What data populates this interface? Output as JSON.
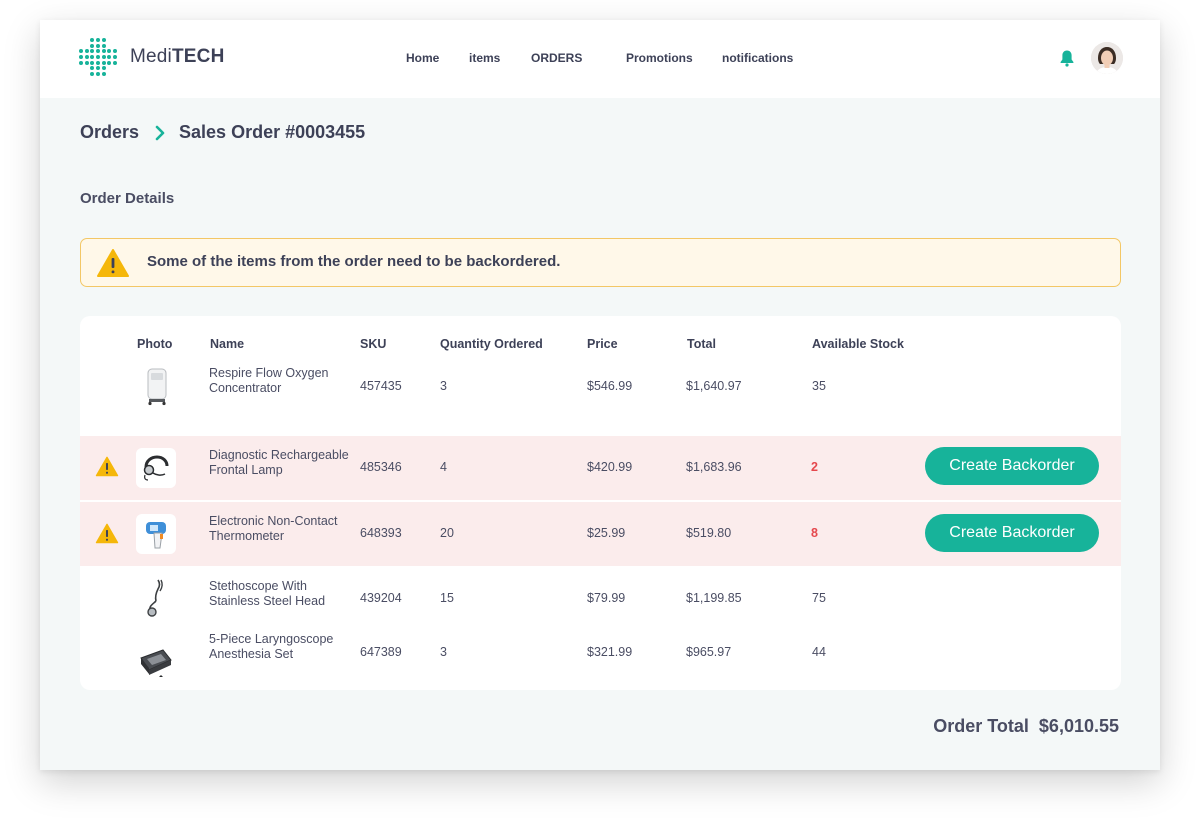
{
  "app": {
    "logo_prefix": "Medi",
    "logo_suffix": "TECH",
    "accent": "#17b39a",
    "warning": "#f5b70a",
    "danger": "#e5484d"
  },
  "nav": [
    {
      "label": "Home"
    },
    {
      "label": "items"
    },
    {
      "label": "ORDERS"
    },
    {
      "label": "Promotions"
    },
    {
      "label": "notifications"
    }
  ],
  "header_icons": {
    "bell": "bell-icon",
    "avatar": "user-avatar"
  },
  "breadcrumb": {
    "parent": "Orders",
    "current": "Sales Order #0003455"
  },
  "section_title": "Order Details",
  "alert": {
    "icon": "warning-icon",
    "message": "Some of the items from the order need to be backordered."
  },
  "table": {
    "headers": [
      "Photo",
      "Name",
      "SKU",
      "Quantity Ordered",
      "Price",
      "Total",
      "Available Stock"
    ],
    "rows": [
      {
        "photo": "oxygen-concentrator-photo",
        "name": "Respire Flow Oxygen Concentrator",
        "sku": "457435",
        "qty": "3",
        "price": "$546.99",
        "total": "$1,640.97",
        "stock": "35",
        "backorder": false
      },
      {
        "photo": "frontal-lamp-photo",
        "name": "Diagnostic Rechargeable Frontal Lamp",
        "sku": "485346",
        "qty": "4",
        "price": "$420.99",
        "total": "$1,683.96",
        "stock": "2",
        "backorder": true,
        "action": "Create Backorder"
      },
      {
        "photo": "thermometer-photo",
        "name": "Electronic Non-Contact Thermometer",
        "sku": "648393",
        "qty": "20",
        "price": "$25.99",
        "total": "$519.80",
        "stock": "8",
        "backorder": true,
        "action": "Create Backorder"
      },
      {
        "photo": "stethoscope-photo",
        "name": "Stethoscope With Stainless Steel Head",
        "sku": "439204",
        "qty": "15",
        "price": "$79.99",
        "total": "$1,199.85",
        "stock": "75",
        "backorder": false
      },
      {
        "photo": "laryngoscope-set-photo",
        "name": "5-Piece Laryngoscope Anesthesia Set",
        "sku": "647389",
        "qty": "3",
        "price": "$321.99",
        "total": "$965.97",
        "stock": "44",
        "backorder": false
      }
    ]
  },
  "order_total": {
    "label": "Order Total",
    "value": "$6,010.55"
  }
}
